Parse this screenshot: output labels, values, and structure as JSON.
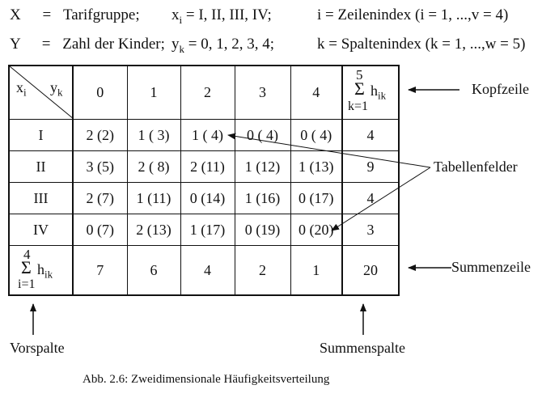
{
  "definitions": {
    "line1": {
      "var": "X",
      "eq": "=",
      "name": "Tarifgruppe;",
      "sym": "x",
      "symsub": "i",
      "values": "=  I, II, III, IV;",
      "index": "i = Zeilenindex  (i = 1, ...,v = 4)"
    },
    "line2": {
      "var": "Y",
      "eq": "=",
      "name": "Zahl der Kinder;",
      "sym": "y",
      "symsub": "k",
      "values": "=  0, 1, 2, 3, 4;",
      "index": "k = Spaltenindex (k = 1, ...,w = 5)"
    }
  },
  "table": {
    "corner": {
      "x": "x",
      "xsub": "i",
      "y": "y",
      "ysub": "k"
    },
    "col_headers": [
      "0",
      "1",
      "2",
      "3",
      "4"
    ],
    "sum_header": {
      "top": "5",
      "sigma": "Σ",
      "h": "h",
      "hsub": "ik",
      "bottom": "k=1"
    },
    "rows": [
      {
        "label": "I",
        "cells": [
          "2  (2)",
          "1 ( 3)",
          "1 ( 4)",
          "0 ( 4)",
          "0 ( 4)"
        ],
        "sum": "4"
      },
      {
        "label": "II",
        "cells": [
          "3  (5)",
          "2 ( 8)",
          "2 (11)",
          "1 (12)",
          "1 (13)"
        ],
        "sum": "9"
      },
      {
        "label": "III",
        "cells": [
          "2  (7)",
          "1 (11)",
          "0 (14)",
          "1 (16)",
          "0 (17)"
        ],
        "sum": "4"
      },
      {
        "label": "IV",
        "cells": [
          "0  (7)",
          "2 (13)",
          "1 (17)",
          "0 (19)",
          "0 (20)"
        ],
        "sum": "3"
      }
    ],
    "sum_row": {
      "top": "4",
      "sigma": "Σ",
      "h": "h",
      "hsub": "ik",
      "bottom": "i=1",
      "values": [
        "7",
        "6",
        "4",
        "2",
        "1"
      ],
      "total": "20"
    }
  },
  "annotations": {
    "kopfzeile": "Kopfzeile",
    "tabellenfelder": "Tabellenfelder",
    "summenzeile": "Summenzeile",
    "vorspalte": "Vorspalte",
    "summenspalte": "Summenspalte"
  },
  "caption": "Abb. 2.6: Zweidimensionale Häufigkeitsverteilung"
}
